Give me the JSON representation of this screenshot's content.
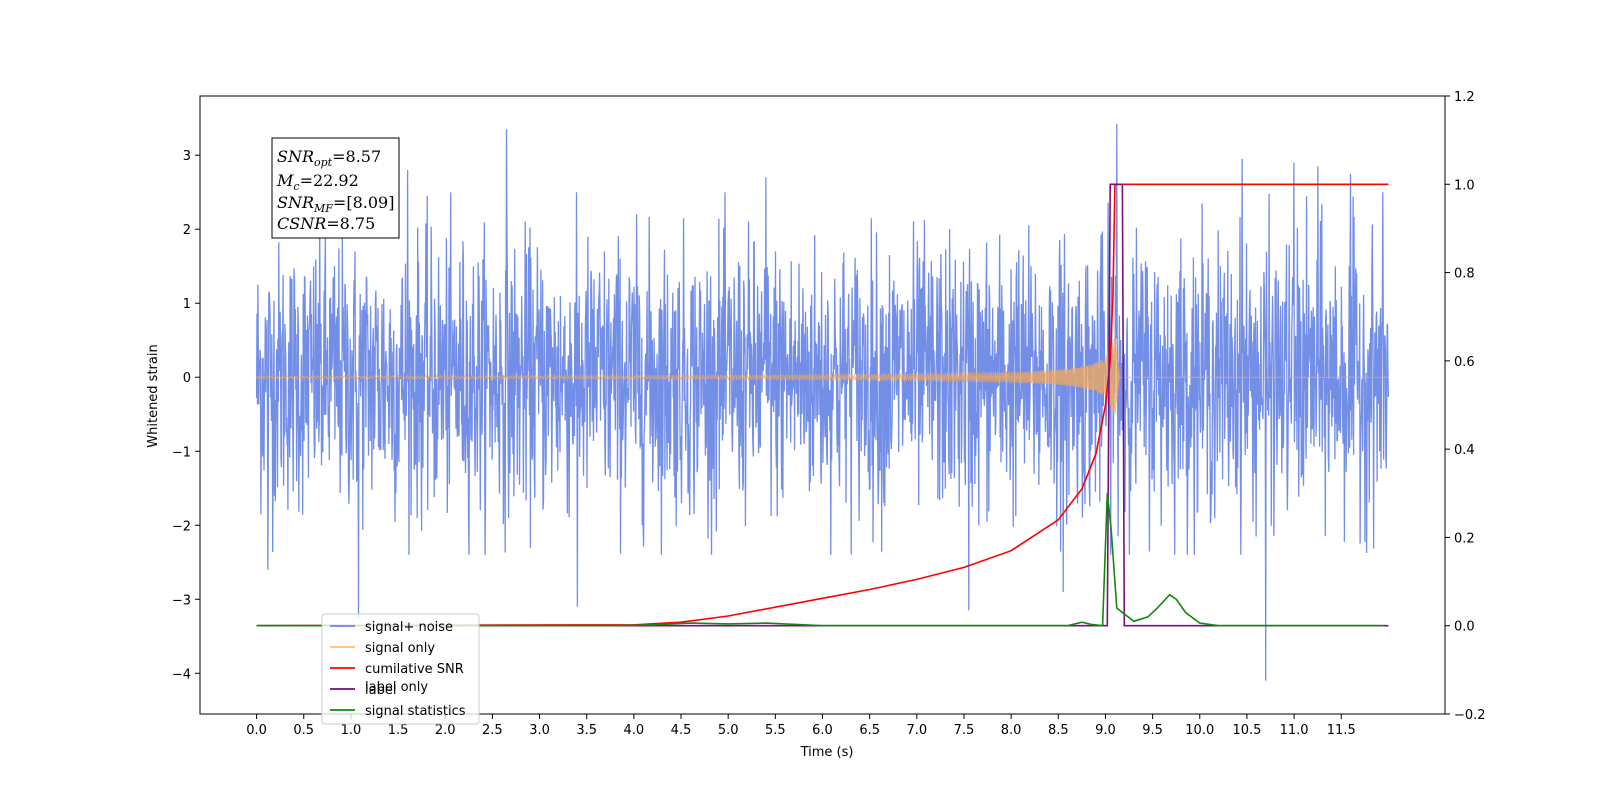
{
  "chart_data": {
    "type": "line",
    "xlabel": "Time (s)",
    "ylabel": "Whitened strain",
    "xlim": [
      -0.6,
      12.6
    ],
    "ylim": [
      -4.55,
      3.8
    ],
    "y2lim": [
      -0.2,
      1.2
    ],
    "x_ticks": [
      "0.0",
      "0.5",
      "1.0",
      "1.5",
      "2.0",
      "2.5",
      "3.0",
      "3.5",
      "4.0",
      "4.5",
      "5.0",
      "5.5",
      "6.0",
      "6.5",
      "7.0",
      "7.5",
      "8.0",
      "8.5",
      "9.0",
      "9.5",
      "10.0",
      "10.5",
      "11.0",
      "11.5"
    ],
    "x_tick_values": [
      0,
      0.5,
      1,
      1.5,
      2,
      2.5,
      3,
      3.5,
      4,
      4.5,
      5,
      5.5,
      6,
      6.5,
      7,
      7.5,
      8,
      8.5,
      9,
      9.5,
      10,
      10.5,
      11,
      11.5
    ],
    "y_ticks": [
      "−4",
      "−3",
      "−2",
      "−1",
      "0",
      "1",
      "2",
      "3"
    ],
    "y_tick_values": [
      -4,
      -3,
      -2,
      -1,
      0,
      1,
      2,
      3
    ],
    "y2_ticks": [
      "−0.2",
      "0.0",
      "0.2",
      "0.4",
      "0.6",
      "0.8",
      "1.0",
      "1.2"
    ],
    "y2_tick_values": [
      -0.2,
      0,
      0.2,
      0.4,
      0.6,
      0.8,
      1.0,
      1.2
    ],
    "series": [
      {
        "name": "signal+ noise",
        "color": "#6a88e6",
        "axis": "left",
        "description_values": {
          "x_start": 0.0,
          "x_end": 12.0,
          "typical_envelope": [
            -1.6,
            1.8
          ],
          "noise_std": 0.9
        },
        "spikes": [
          {
            "x": 0.12,
            "y": -2.6
          },
          {
            "x": 1.08,
            "y": -3.25
          },
          {
            "x": 1.6,
            "y": 2.8
          },
          {
            "x": 2.65,
            "y": 3.35
          },
          {
            "x": 3.4,
            "y": -3.1
          },
          {
            "x": 5.4,
            "y": 2.7
          },
          {
            "x": 7.55,
            "y": -3.15
          },
          {
            "x": 8.55,
            "y": -2.9
          },
          {
            "x": 9.12,
            "y": 3.42
          },
          {
            "x": 10.45,
            "y": 2.95
          },
          {
            "x": 10.7,
            "y": -4.1
          },
          {
            "x": 11.0,
            "y": 2.9
          },
          {
            "x": 11.25,
            "y": 2.85
          },
          {
            "x": 11.6,
            "y": 2.75
          }
        ]
      },
      {
        "name": "signal only",
        "color": "#f5a85a",
        "axis": "left",
        "chirp": {
          "start_amplitude_x": 5.0,
          "merger_x": 9.1,
          "peak_amplitude": 0.62,
          "ringdown_end_x": 9.15
        }
      },
      {
        "name": "cumilative SNR",
        "color": "#ff0000",
        "axis": "right",
        "x": [
          0,
          4.0,
          4.5,
          5.0,
          5.5,
          6.0,
          6.5,
          7.0,
          7.5,
          8.0,
          8.5,
          8.75,
          8.9,
          9.0,
          9.05,
          9.08,
          9.1,
          12.0
        ],
        "y": [
          0.0,
          0.002,
          0.008,
          0.022,
          0.042,
          0.062,
          0.082,
          0.105,
          0.132,
          0.17,
          0.24,
          0.31,
          0.39,
          0.5,
          0.6,
          0.75,
          1.0,
          1.0
        ]
      },
      {
        "name": "label",
        "color": "#7b0f7b",
        "axis": "right",
        "x": [
          0,
          9.02,
          9.05,
          9.18,
          9.2,
          12.0
        ],
        "y": [
          0,
          0,
          1.0,
          1.0,
          0,
          0
        ]
      },
      {
        "name": "signal statistics",
        "color": "#118811",
        "axis": "right",
        "x": [
          0,
          3.8,
          4.2,
          4.6,
          5.0,
          5.4,
          5.8,
          6.0,
          6.6,
          7.2,
          8.6,
          8.75,
          8.85,
          8.97,
          9.02,
          9.06,
          9.12,
          9.3,
          9.45,
          9.55,
          9.68,
          9.75,
          9.85,
          10.0,
          10.2,
          11.95
        ],
        "y": [
          0,
          0,
          0.002,
          0.006,
          0.004,
          0.006,
          0.002,
          0.0,
          0.0,
          0.0,
          0.0,
          0.008,
          0.003,
          0.0,
          0.3,
          0.22,
          0.04,
          0.01,
          0.02,
          0.04,
          0.07,
          0.06,
          0.03,
          0.006,
          0.0,
          0.0
        ]
      }
    ],
    "legend": {
      "placement": "lower-left",
      "entries": [
        {
          "name": "signal+ noise",
          "color": "#6a88e6"
        },
        {
          "name": "signal only",
          "color": "#ffc166"
        },
        {
          "name": "cumilative SNR",
          "color": "#ff0000"
        },
        {
          "name": "label",
          "color": "#6b0f6b"
        },
        {
          "name": "signal statistics",
          "color": "#118811"
        }
      ]
    },
    "hidden_legend_residue": "label only",
    "stats_box": {
      "snr_opt": {
        "sym": "SNR",
        "sub": "opt",
        "value": "=8.57"
      },
      "mc": {
        "sym": "M",
        "sub": "c",
        "value": "=22.92"
      },
      "snr_mf": {
        "sym": "SNR",
        "sub": "MF",
        "value": "=[8.09]"
      },
      "csnr": {
        "sym": "CSNR",
        "sub": "",
        "value": "=8.75"
      }
    }
  }
}
